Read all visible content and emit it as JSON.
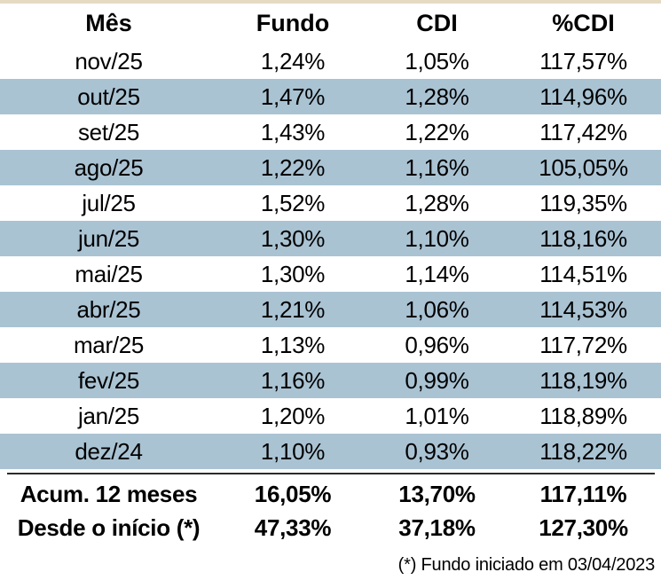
{
  "chart_data": {
    "type": "table",
    "columns": [
      "Mês",
      "Fundo",
      "CDI",
      "%CDI"
    ],
    "rows": [
      [
        "nov/25",
        "1,24%",
        "1,05%",
        "117,57%"
      ],
      [
        "out/25",
        "1,47%",
        "1,28%",
        "114,96%"
      ],
      [
        "set/25",
        "1,43%",
        "1,22%",
        "117,42%"
      ],
      [
        "ago/25",
        "1,22%",
        "1,16%",
        "105,05%"
      ],
      [
        "jul/25",
        "1,52%",
        "1,28%",
        "119,35%"
      ],
      [
        "jun/25",
        "1,30%",
        "1,10%",
        "118,16%"
      ],
      [
        "mai/25",
        "1,30%",
        "1,14%",
        "114,51%"
      ],
      [
        "abr/25",
        "1,21%",
        "1,06%",
        "114,53%"
      ],
      [
        "mar/25",
        "1,13%",
        "0,96%",
        "117,72%"
      ],
      [
        "fev/25",
        "1,16%",
        "0,99%",
        "118,19%"
      ],
      [
        "jan/25",
        "1,20%",
        "1,01%",
        "118,89%"
      ],
      [
        "dez/24",
        "1,10%",
        "0,93%",
        "118,22%"
      ]
    ],
    "totals": [
      [
        "Acum. 12 meses",
        "16,05%",
        "13,70%",
        "117,11%"
      ],
      [
        "Desde o início (*)",
        "47,33%",
        "37,18%",
        "127,30%"
      ]
    ],
    "footnote": "(*) Fundo iniciado em 03/04/2023",
    "layout": {
      "striping": "alternating rows starting white, even rows highlighted",
      "stripe_color": "#AAC3D3",
      "top_border_color": "#E6DAC3",
      "separator_color": "#2B2B2B",
      "text_color": "#000000",
      "column_alignment": "center"
    }
  }
}
